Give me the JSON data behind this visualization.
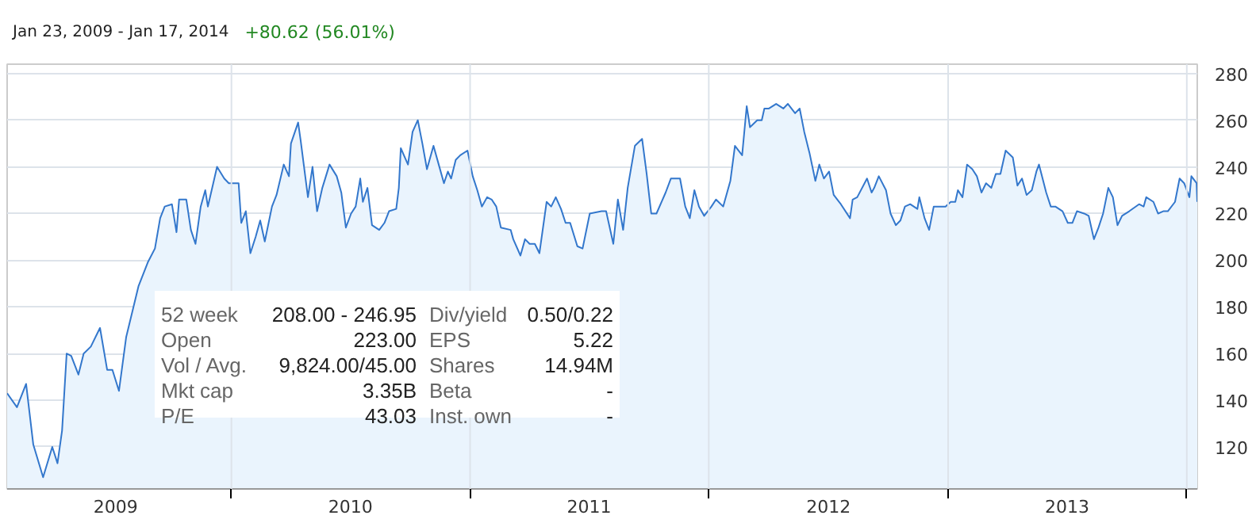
{
  "chart_data": {
    "type": "area",
    "title": "Jan 23, 2009 - Jan 17, 2014",
    "subtitle": "+80.62 (56.01%)",
    "xlim": [
      "2009-01-23",
      "2014-01-17"
    ],
    "ylim": [
      102,
      284
    ],
    "xticks": [
      {
        "value": "2009-07-08",
        "label": "2009"
      },
      {
        "value": "2010-01-01",
        "label": null
      },
      {
        "value": "2010-07-02",
        "label": "2010"
      },
      {
        "value": "2011-01-01",
        "label": null
      },
      {
        "value": "2011-07-02",
        "label": "2011"
      },
      {
        "value": "2012-01-01",
        "label": null
      },
      {
        "value": "2012-07-02",
        "label": "2012"
      },
      {
        "value": "2013-01-01",
        "label": null
      },
      {
        "value": "2013-07-02",
        "label": "2013"
      },
      {
        "value": "2014-01-01",
        "label": null
      }
    ],
    "yticks": [
      120,
      140,
      160,
      180,
      200,
      220,
      240,
      260,
      280
    ],
    "grid": true,
    "annotations": [
      "52 week",
      "208.00 - 246.95",
      "Div/yield",
      "0.50/0.22",
      "Open",
      "223.00",
      "EPS",
      "5.22",
      "Vol / Avg.",
      "9,824.00/45.00",
      "Shares",
      "14.94M",
      "Mkt cap",
      "3.35B",
      "Beta",
      "-",
      "P/E",
      "43.03",
      "Inst. own",
      "-"
    ],
    "series": [
      {
        "color": "#3377cc",
        "x": [
          "2009-01-23",
          "2009-02-07",
          "2009-02-21",
          "2009-03-04",
          "2009-03-19",
          "2009-04-02",
          "2009-04-10",
          "2009-04-17",
          "2009-04-24",
          "2009-05-01",
          "2009-05-12",
          "2009-05-20",
          "2009-05-31",
          "2009-06-14",
          "2009-06-25",
          "2009-07-03",
          "2009-07-13",
          "2009-07-24",
          "2009-08-12",
          "2009-08-26",
          "2009-09-06",
          "2009-09-14",
          "2009-09-21",
          "2009-10-02",
          "2009-10-09",
          "2009-10-13",
          "2009-10-24",
          "2009-10-31",
          "2009-11-07",
          "2009-11-15",
          "2009-11-22",
          "2009-11-26",
          "2009-12-10",
          "2009-12-21",
          "2009-12-28",
          "2010-01-12",
          "2010-01-16",
          "2010-01-23",
          "2010-01-30",
          "2010-02-07",
          "2010-02-14",
          "2010-02-21",
          "2010-03-04",
          "2010-03-11",
          "2010-03-22",
          "2010-03-30",
          "2010-04-02",
          "2010-04-13",
          "2010-04-17",
          "2010-04-28",
          "2010-05-05",
          "2010-05-12",
          "2010-05-20",
          "2010-05-31",
          "2010-06-11",
          "2010-06-18",
          "2010-06-25",
          "2010-07-03",
          "2010-07-10",
          "2010-07-17",
          "2010-07-21",
          "2010-07-28",
          "2010-08-04",
          "2010-08-15",
          "2010-08-23",
          "2010-08-30",
          "2010-09-10",
          "2010-09-14",
          "2010-09-17",
          "2010-09-28",
          "2010-10-05",
          "2010-10-13",
          "2010-10-20",
          "2010-10-27",
          "2010-11-06",
          "2010-11-14",
          "2010-11-22",
          "2010-11-28",
          "2010-12-03",
          "2010-12-10",
          "2010-12-17",
          "2010-12-28",
          "2011-01-05",
          "2011-01-12",
          "2011-01-19",
          "2011-01-27",
          "2011-02-03",
          "2011-02-10",
          "2011-02-17",
          "2011-03-04",
          "2011-03-08",
          "2011-03-19",
          "2011-03-26",
          "2011-04-02",
          "2011-04-10",
          "2011-04-17",
          "2011-04-28",
          "2011-05-05",
          "2011-05-12",
          "2011-05-20",
          "2011-05-27",
          "2011-06-03",
          "2011-06-14",
          "2011-06-22",
          "2011-07-03",
          "2011-07-21",
          "2011-07-28",
          "2011-08-08",
          "2011-08-15",
          "2011-08-23",
          "2011-08-30",
          "2011-09-10",
          "2011-09-21",
          "2011-09-28",
          "2011-10-05",
          "2011-10-13",
          "2011-10-27",
          "2011-11-04",
          "2011-11-18",
          "2011-11-26",
          "2011-12-03",
          "2011-12-10",
          "2011-12-17",
          "2011-12-25",
          "2012-01-05",
          "2012-01-12",
          "2012-01-23",
          "2012-02-03",
          "2012-02-10",
          "2012-02-21",
          "2012-02-28",
          "2012-03-04",
          "2012-03-15",
          "2012-03-22",
          "2012-03-26",
          "2012-04-02",
          "2012-04-13",
          "2012-04-24",
          "2012-05-01",
          "2012-05-12",
          "2012-05-19",
          "2012-05-26",
          "2012-06-03",
          "2012-06-12",
          "2012-06-18",
          "2012-06-25",
          "2012-07-03",
          "2012-07-10",
          "2012-07-21",
          "2012-08-04",
          "2012-08-08",
          "2012-08-15",
          "2012-08-30",
          "2012-09-06",
          "2012-09-10",
          "2012-09-17",
          "2012-09-28",
          "2012-10-05",
          "2012-10-13",
          "2012-10-20",
          "2012-10-27",
          "2012-11-04",
          "2012-11-15",
          "2012-11-18",
          "2012-11-26",
          "2012-12-03",
          "2012-12-10",
          "2012-12-28",
          "2013-01-05",
          "2013-01-12",
          "2013-01-16",
          "2013-01-23",
          "2013-01-30",
          "2013-02-07",
          "2013-02-14",
          "2013-02-21",
          "2013-02-28",
          "2013-03-08",
          "2013-03-15",
          "2013-03-22",
          "2013-03-30",
          "2013-04-10",
          "2013-04-17",
          "2013-04-24",
          "2013-05-01",
          "2013-05-09",
          "2013-05-16",
          "2013-05-20",
          "2013-05-31",
          "2013-06-07",
          "2013-06-14",
          "2013-06-25",
          "2013-07-03",
          "2013-07-10",
          "2013-07-17",
          "2013-07-28",
          "2013-08-04",
          "2013-08-12",
          "2013-08-19",
          "2013-08-26",
          "2013-09-03",
          "2013-09-10",
          "2013-09-17",
          "2013-09-24",
          "2013-10-05",
          "2013-10-20",
          "2013-10-27",
          "2013-10-31",
          "2013-11-11",
          "2013-11-18",
          "2013-11-26",
          "2013-12-03",
          "2013-12-14",
          "2013-12-21",
          "2013-12-28",
          "2014-01-05",
          "2014-01-08",
          "2014-01-16",
          "2014-01-17"
        ],
        "values": [
          143,
          137,
          147,
          121,
          107,
          120,
          113,
          127,
          160,
          159,
          151,
          160,
          163,
          171,
          153,
          153,
          144,
          167,
          189,
          199,
          205,
          218,
          223,
          224,
          212,
          226,
          226,
          213,
          207,
          223,
          230,
          223,
          240,
          235,
          233,
          233,
          216,
          221,
          203,
          210,
          217,
          208,
          223,
          228,
          241,
          236,
          250,
          259,
          251,
          227,
          240,
          221,
          231,
          241,
          236,
          229,
          214,
          220,
          223,
          235,
          225,
          231,
          215,
          213,
          216,
          221,
          222,
          231,
          248,
          241,
          255,
          260,
          250,
          239,
          249,
          241,
          233,
          238,
          235,
          243,
          245,
          247,
          236,
          230,
          223,
          227,
          226,
          223,
          214,
          213,
          209,
          202,
          209,
          207,
          207,
          203,
          225,
          223,
          227,
          222,
          216,
          216,
          206,
          205,
          220,
          221,
          221,
          207,
          226,
          213,
          231,
          249,
          252,
          237,
          220,
          220,
          229,
          235,
          235,
          223,
          218,
          230,
          223,
          219,
          223,
          226,
          223,
          234,
          249,
          245,
          266,
          257,
          260,
          260,
          265,
          265,
          267,
          265,
          267,
          263,
          265,
          255,
          246,
          234,
          241,
          235,
          238,
          228,
          224,
          218,
          226,
          227,
          235,
          229,
          231,
          236,
          230,
          220,
          215,
          217,
          223,
          224,
          222,
          227,
          218,
          213,
          223,
          223,
          225,
          225,
          230,
          227,
          241,
          239,
          236,
          229,
          233,
          231,
          237,
          237,
          247,
          244,
          232,
          235,
          228,
          230,
          238,
          241,
          229,
          223,
          223,
          221,
          216,
          216,
          221,
          220,
          219,
          209,
          214,
          220,
          231,
          227,
          215,
          219,
          221,
          224,
          223,
          227,
          225,
          220,
          221,
          221,
          225,
          235,
          233,
          227,
          236,
          233,
          225
        ]
      }
    ]
  }
}
